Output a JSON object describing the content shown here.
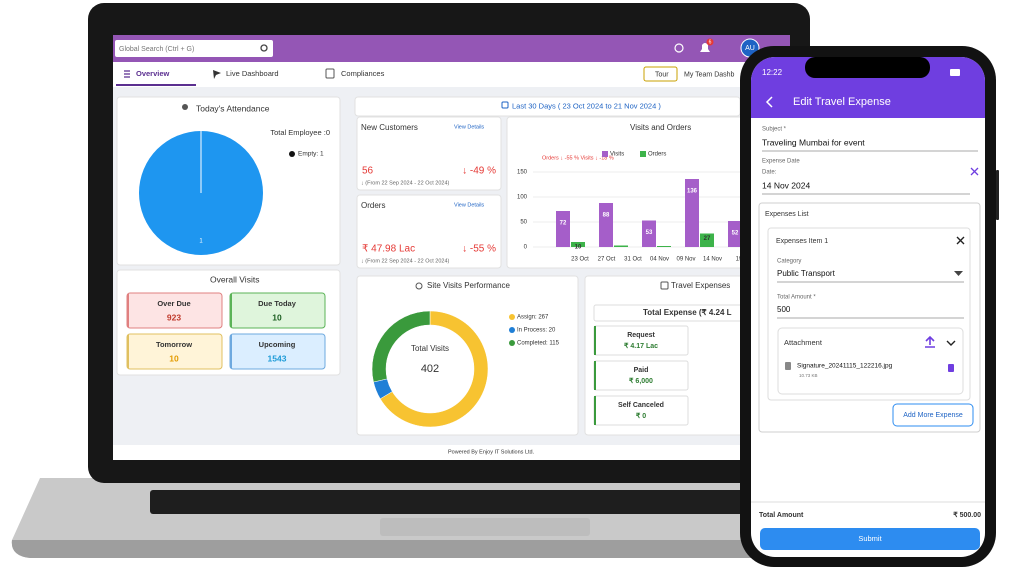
{
  "laptop": {
    "search": "Global Search (Ctrl + G)",
    "badge": "6",
    "avatar": "AU",
    "tabs": [
      "Overview",
      "Live Dashboard",
      "Compliances"
    ],
    "tour": "Tour",
    "team_tab": "My Team Dashb",
    "attendance": {
      "title": "Today's Attendance",
      "total": "Total Employee :0",
      "legend": "Empty: 1",
      "values": [
        1
      ],
      "color": "#1e96f0"
    },
    "visits": {
      "title": "Overall Visits",
      "items": [
        {
          "label": "Over Due",
          "value": 923
        },
        {
          "label": "Due Today",
          "value": 10
        },
        {
          "label": "Tomorrow",
          "value": 10
        },
        {
          "label": "Upcoming",
          "value": 1543
        }
      ]
    },
    "date_range": "Last 30 Days ( 23 Oct 2024 to 21 Nov 2024 )",
    "kpis": [
      {
        "title": "New Customers",
        "link": "View Details",
        "value": "56",
        "change": "↓ -49 %",
        "from": "↓ (From 22 Sep 2024 - 22 Oct 2024)"
      },
      {
        "title": "Orders",
        "link": "View Details",
        "value": "₹ 47.98 Lac",
        "change": "↓ -55 %",
        "from": "↓ (From 22 Sep 2024 - 22 Oct 2024)"
      }
    ],
    "bar_chart": {
      "type": "bar",
      "title": "Visits and Orders",
      "note": "Orders ↓ -55 % Visits ↓ -18 %",
      "xticks": [
        "23 Oct",
        "27 Oct",
        "31 Oct",
        "04 Nov",
        "09 Nov",
        "14 Nov",
        "19"
      ],
      "ylim": [
        0,
        150
      ],
      "yticks": [
        0,
        50,
        100,
        150
      ],
      "series": [
        {
          "name": "Visits",
          "color": "#a55ec9",
          "values": [
            72,
            88,
            53,
            136,
            52
          ]
        },
        {
          "name": "Orders",
          "color": "#3db34a",
          "values": [
            10,
            3,
            2,
            27,
            null
          ],
          "value_labels": [
            "10",
            null,
            null,
            "27",
            null
          ]
        }
      ]
    },
    "donut": {
      "type": "pie",
      "title": "Site Visits Performance",
      "center_label": "Total Visits",
      "center_value": "402",
      "labels": [
        "Assign: 267",
        "In Process: 20",
        "Completed: 115"
      ],
      "values": [
        267,
        20,
        115
      ],
      "colors": [
        "#f7c331",
        "#1f7fd6",
        "#3a9a3c"
      ]
    },
    "travel": {
      "title": "Travel Expenses",
      "total": "Total Expense (₹ 4.24 L",
      "items": [
        {
          "label": "Request",
          "value": "₹ 4.17 Lac"
        },
        {
          "label": "Paid",
          "value": "₹ 6,000"
        },
        {
          "label": "Self Canceled",
          "value": "₹ 0"
        }
      ]
    },
    "footer": "Powered By Enjoy IT Solutions Ltd."
  },
  "phone": {
    "time": "12:22",
    "header": "Edit Travel Expense",
    "subject_label": "Subject *",
    "subject": "Traveling Mumbai for event",
    "date_section": "Expense Date",
    "date_label": "Date:",
    "date": "14 Nov 2024",
    "list_title": "Expenses List",
    "item_title": "Expenses Item 1",
    "category_label": "Category",
    "category": "Public Transport",
    "amount_label": "Total Amount *",
    "amount": "500",
    "attachment": "Attachment",
    "file": "Signature_20241115_122216.jpg",
    "file_size": "10.73 KB",
    "add_more": "Add More Expense",
    "total_label": "Total Amount",
    "total": "₹ 500.00",
    "submit": "Submit"
  }
}
